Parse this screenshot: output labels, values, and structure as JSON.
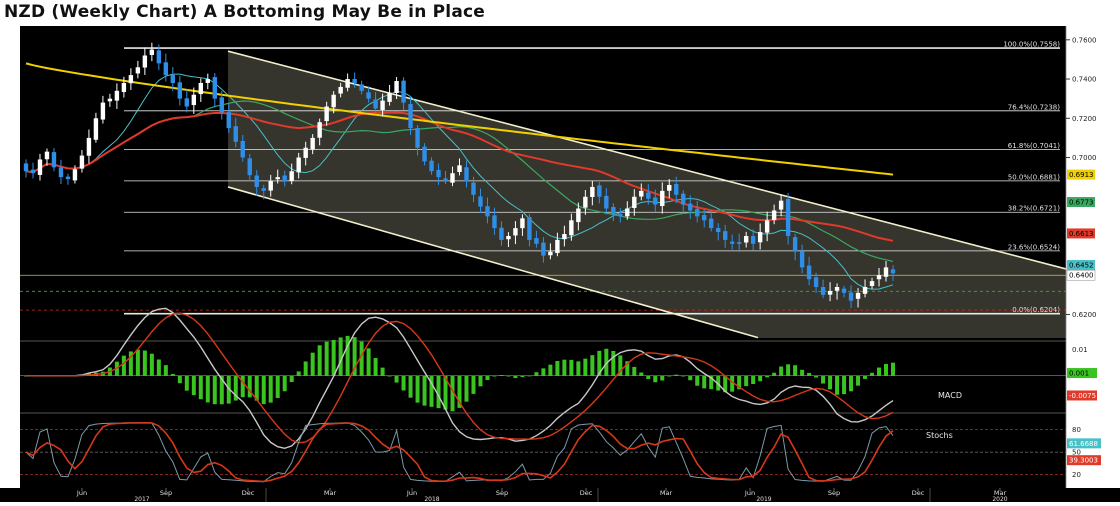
{
  "title": "NZD (Weekly Chart) A Bottoming May Be in Place",
  "chart_data": {
    "type": "candlestick",
    "colors": {
      "background": "#000000",
      "up_candle": "#ffffff",
      "down_candle": "#2f8fe8",
      "ma_yellow": "#f0d000",
      "ma_red": "#e03a2a",
      "ma_green": "#3aa860",
      "ma_cyan": "#48c0c8",
      "channel": "#f3eecb",
      "fib_line": "#e8e8e8",
      "macd_hist": "#39c41f",
      "stoch_k": "#d83818",
      "stoch_d": "#7a9aa8"
    },
    "price_axis": {
      "ticks": [
        "0.7600",
        "0.7400",
        "0.7200",
        "0.7000",
        "0.6200"
      ],
      "range": [
        0.608,
        0.765
      ]
    },
    "fibonacci": [
      {
        "label": "100.0%(0.7558)",
        "value": 0.7558
      },
      {
        "label": "76.4%(0.7238)",
        "value": 0.7238
      },
      {
        "label": "61.8%(0.7041)",
        "value": 0.7041
      },
      {
        "label": "50.0%(0.6881)",
        "value": 0.6881
      },
      {
        "label": "38.2%(0.6721)",
        "value": 0.6721
      },
      {
        "label": "23.6%(0.6524)",
        "value": 0.6524
      },
      {
        "label": "0.0%(0.6204)",
        "value": 0.6204
      }
    ],
    "last_value_tags": [
      {
        "label": "0.6913",
        "value": 0.6913,
        "color": "#f0d000"
      },
      {
        "label": "0.6773",
        "value": 0.6773,
        "color": "#3aa860"
      },
      {
        "label": "0.6613",
        "value": 0.6613,
        "color": "#e03a2a"
      },
      {
        "label": "0.6452",
        "value": 0.6452,
        "color": "#48c0c8"
      },
      {
        "label": "0.6400",
        "value": 0.64,
        "color": "#000000"
      }
    ],
    "macd": {
      "label": "MACD",
      "ticks": [
        "0.01",
        "0.001",
        "-0.0075"
      ],
      "range": [
        -0.013,
        0.012
      ]
    },
    "stochastics": {
      "label": "Stochs",
      "ticks": [
        "80",
        "61.6688",
        "50",
        "39.3003",
        "20"
      ],
      "range": [
        5,
        98
      ]
    },
    "x_axis": {
      "months": [
        "Jun",
        "Sep",
        "Dec",
        "Mar",
        "Jun",
        "Sep",
        "Dec",
        "Mar",
        "Jun",
        "Sep",
        "Dec",
        "Mar"
      ],
      "years": [
        "2017",
        "2018",
        "2019",
        "2020"
      ]
    },
    "weekly_closes": [
      0.693,
      0.692,
      0.699,
      0.703,
      0.695,
      0.69,
      0.689,
      0.694,
      0.701,
      0.71,
      0.72,
      0.728,
      0.73,
      0.734,
      0.738,
      0.742,
      0.746,
      0.752,
      0.755,
      0.748,
      0.742,
      0.738,
      0.73,
      0.726,
      0.732,
      0.738,
      0.74,
      0.73,
      0.723,
      0.715,
      0.708,
      0.7,
      0.691,
      0.685,
      0.683,
      0.688,
      0.69,
      0.688,
      0.693,
      0.7,
      0.705,
      0.71,
      0.718,
      0.726,
      0.732,
      0.736,
      0.74,
      0.738,
      0.734,
      0.73,
      0.725,
      0.729,
      0.733,
      0.739,
      0.728,
      0.715,
      0.705,
      0.698,
      0.693,
      0.69,
      0.688,
      0.692,
      0.696,
      0.688,
      0.681,
      0.675,
      0.67,
      0.664,
      0.658,
      0.66,
      0.664,
      0.669,
      0.658,
      0.656,
      0.65,
      0.652,
      0.658,
      0.661,
      0.668,
      0.674,
      0.68,
      0.685,
      0.68,
      0.674,
      0.671,
      0.67,
      0.674,
      0.68,
      0.683,
      0.679,
      0.676,
      0.683,
      0.686,
      0.681,
      0.676,
      0.673,
      0.67,
      0.668,
      0.664,
      0.662,
      0.658,
      0.656,
      0.656,
      0.66,
      0.656,
      0.662,
      0.668,
      0.673,
      0.678,
      0.66,
      0.652,
      0.644,
      0.638,
      0.634,
      0.63,
      0.632,
      0.634,
      0.631,
      0.627,
      0.631,
      0.634,
      0.637,
      0.64,
      0.644,
      0.641
    ]
  }
}
